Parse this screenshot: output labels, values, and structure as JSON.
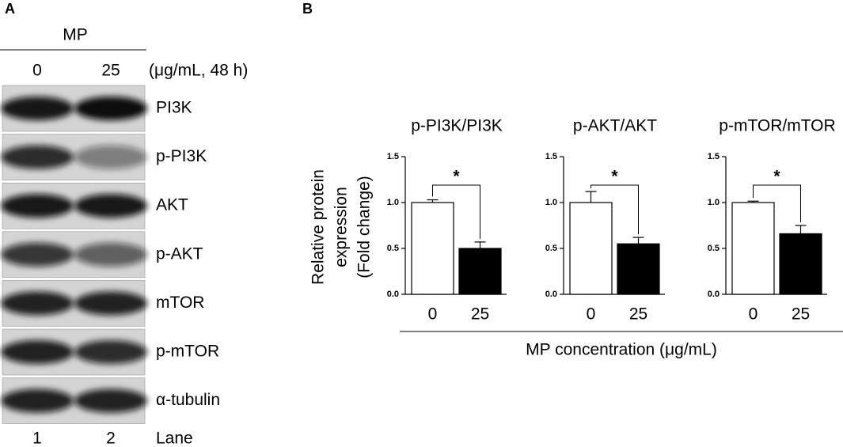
{
  "panel_a": {
    "label": "A",
    "treatment": "MP",
    "doses": [
      "0",
      "25"
    ],
    "unit": "(μg/mL, 48 h)",
    "proteins": [
      "PI3K",
      "p-PI3K",
      "AKT",
      "p-AKT",
      "mTOR",
      "p-mTOR",
      "α-tubulin"
    ],
    "lanes": [
      "1",
      "2"
    ],
    "lane_label": "Lane"
  },
  "panel_b": {
    "label": "B",
    "ylabel": [
      "Relative protein",
      "expression",
      "(Fold change)"
    ],
    "xlabel": "MP concentration (μg/mL)"
  },
  "chart_data": [
    {
      "type": "bar",
      "title": "p-PI3K/PI3K",
      "categories": [
        "0",
        "25"
      ],
      "values": [
        1.0,
        0.5
      ],
      "errors": [
        0.03,
        0.07
      ],
      "colors": [
        "#ffffff",
        "#000000"
      ],
      "ylim": [
        0,
        1.5
      ],
      "yticks": [
        {
          "value": 0,
          "label": "0.0"
        },
        {
          "value": 0.5,
          "label": "0.5"
        },
        {
          "value": 1,
          "label": "1.0"
        },
        {
          "value": 1.5,
          "label": "1.5"
        }
      ],
      "annotation": "*"
    },
    {
      "type": "bar",
      "title": "p-AKT/AKT",
      "categories": [
        "0",
        "25"
      ],
      "values": [
        1.0,
        0.55
      ],
      "errors": [
        0.12,
        0.07
      ],
      "colors": [
        "#ffffff",
        "#000000"
      ],
      "ylim": [
        0,
        1.5
      ],
      "yticks": [
        {
          "value": 0,
          "label": "0.0"
        },
        {
          "value": 0.5,
          "label": "0.5"
        },
        {
          "value": 1,
          "label": "1.0"
        },
        {
          "value": 1.5,
          "label": "1.5"
        }
      ],
      "annotation": "*"
    },
    {
      "type": "bar",
      "title": "p-mTOR/mTOR",
      "categories": [
        "0",
        "25"
      ],
      "values": [
        1.0,
        0.66
      ],
      "errors": [
        0.015,
        0.09
      ],
      "colors": [
        "#ffffff",
        "#000000"
      ],
      "ylim": [
        0,
        1.5
      ],
      "yticks": [
        {
          "value": 0,
          "label": "0.0"
        },
        {
          "value": 0.5,
          "label": "0.5"
        },
        {
          "value": 1,
          "label": "1.0"
        },
        {
          "value": 1.5,
          "label": "1.5"
        }
      ],
      "annotation": "*"
    }
  ]
}
